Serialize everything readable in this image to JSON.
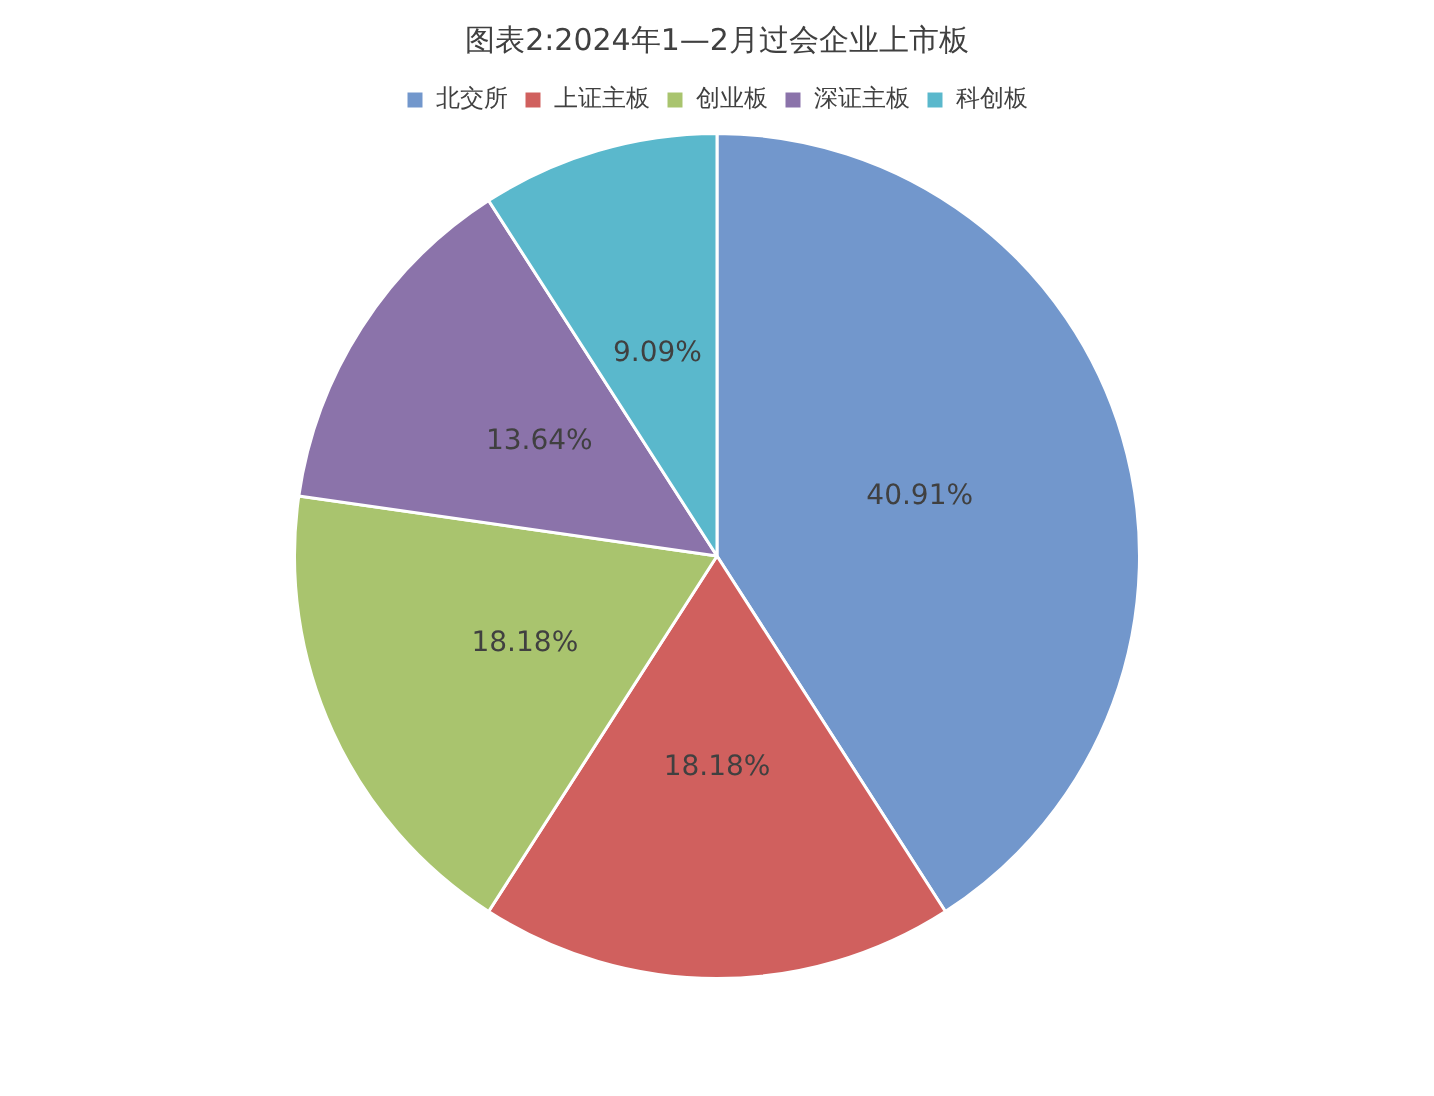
{
  "chart_data": {
    "type": "pie",
    "title": "图表2:2024年1—2月过会企业上市板",
    "categories": [
      "北交所",
      "上证主板",
      "创业板",
      "深证主板",
      "科创板"
    ],
    "values": [
      40.91,
      18.18,
      18.18,
      13.64,
      9.09
    ],
    "value_labels": [
      "40.91%",
      "18.18%",
      "18.18%",
      "13.64%",
      "9.09%"
    ],
    "colors": [
      "#7297cc",
      "#d0605e",
      "#a9c46e",
      "#8b73aa",
      "#5ab8cc"
    ],
    "legend": "top"
  }
}
